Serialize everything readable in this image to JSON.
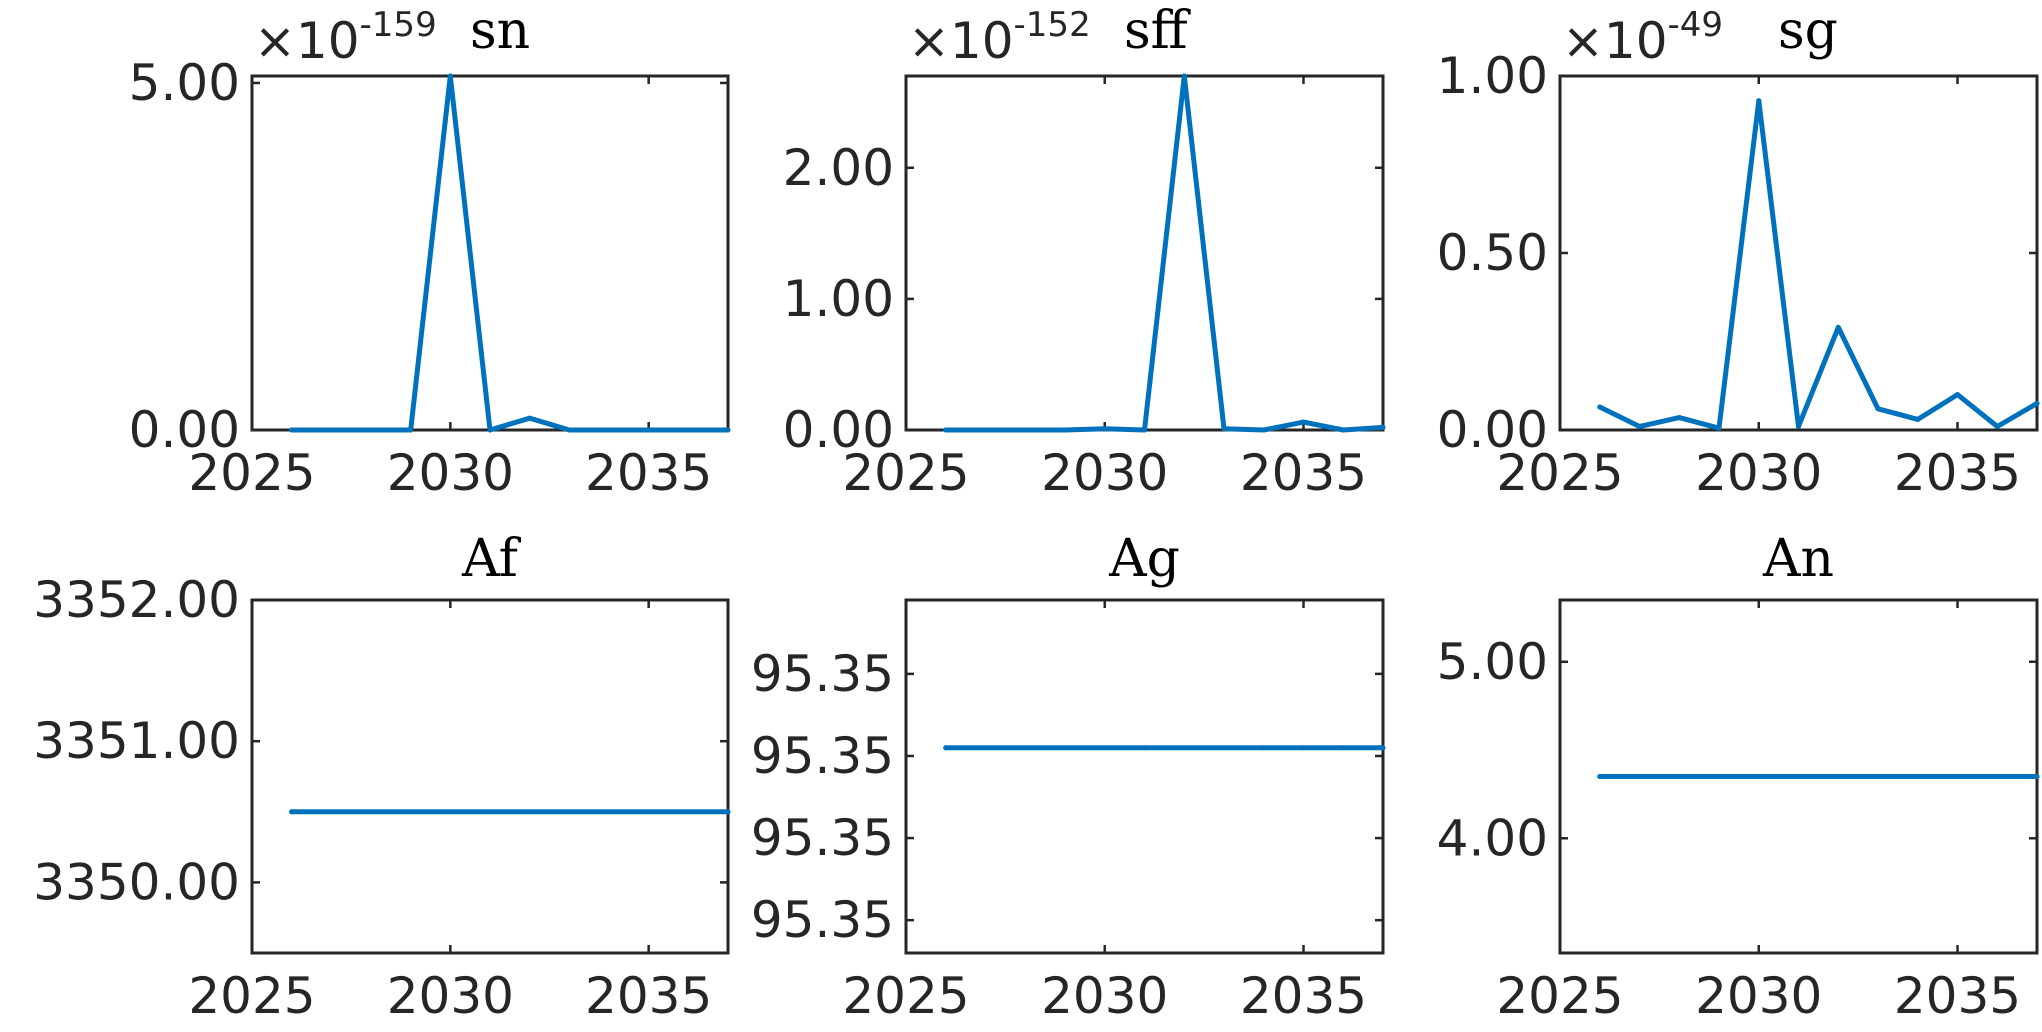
{
  "colors": {
    "series": "#0072BD",
    "axis": "#262626",
    "background": "#ffffff"
  },
  "chart_data": [
    {
      "type": "line",
      "title": "sn",
      "exponent": "-159",
      "exponent_prefix": "×10",
      "x": [
        2026,
        2027,
        2028,
        2029,
        2030,
        2031,
        2032,
        2033,
        2034,
        2035,
        2036,
        2037
      ],
      "series": [
        {
          "values": [
            0,
            0,
            0,
            0,
            5.1,
            0,
            0.17,
            0,
            0,
            0,
            0,
            0
          ]
        }
      ],
      "xlim": [
        2025,
        2037
      ],
      "ylim": [
        0,
        5.1
      ],
      "xticks": [
        2025,
        2030,
        2035
      ],
      "xtick_labels": [
        "2025",
        "2030",
        "2035"
      ],
      "yticks": [
        0,
        5
      ],
      "ytick_labels": [
        "0.00",
        "5.00"
      ]
    },
    {
      "type": "line",
      "title": "sff",
      "exponent": "-152",
      "exponent_prefix": "×10",
      "x": [
        2026,
        2027,
        2028,
        2029,
        2030,
        2031,
        2032,
        2033,
        2034,
        2035,
        2036,
        2037
      ],
      "series": [
        {
          "values": [
            0,
            0,
            0,
            0,
            0.01,
            0,
            2.7,
            0.01,
            0,
            0.06,
            0,
            0.02
          ]
        }
      ],
      "xlim": [
        2025,
        2037
      ],
      "ylim": [
        0,
        2.7
      ],
      "xticks": [
        2025,
        2030,
        2035
      ],
      "xtick_labels": [
        "2025",
        "2030",
        "2035"
      ],
      "yticks": [
        0,
        1,
        2
      ],
      "ytick_labels": [
        "0.00",
        "1.00",
        "2.00"
      ]
    },
    {
      "type": "line",
      "title": "sg",
      "exponent": "-49",
      "exponent_prefix": "×10",
      "x": [
        2026,
        2027,
        2028,
        2029,
        2030,
        2031,
        2032,
        2033,
        2034,
        2035,
        2036,
        2037
      ],
      "series": [
        {
          "values": [
            0.065,
            0.01,
            0.035,
            0.005,
            0.93,
            0.01,
            0.29,
            0.06,
            0.03,
            0.1,
            0.01,
            0.075
          ]
        }
      ],
      "xlim": [
        2025,
        2037
      ],
      "ylim": [
        0,
        1
      ],
      "xticks": [
        2025,
        2030,
        2035
      ],
      "xtick_labels": [
        "2025",
        "2030",
        "2035"
      ],
      "yticks": [
        0,
        0.5,
        1
      ],
      "ytick_labels": [
        "0.00",
        "0.50",
        "1.00"
      ]
    },
    {
      "type": "line",
      "title": "Af",
      "x": [
        2026,
        2037
      ],
      "series": [
        {
          "values": [
            3350.5,
            3350.5
          ]
        }
      ],
      "xlim": [
        2025,
        2037
      ],
      "ylim": [
        3349.5,
        3352
      ],
      "xticks": [
        2025,
        2030,
        2035
      ],
      "xtick_labels": [
        "2025",
        "2030",
        "2035"
      ],
      "yticks": [
        3350,
        3351,
        3352
      ],
      "ytick_labels": [
        "3350.00",
        "3351.00",
        "3352.00"
      ]
    },
    {
      "type": "line",
      "title": "Ag",
      "x": [
        2026,
        2031,
        2034,
        2035,
        2036,
        2037
      ],
      "series": [
        {
          "values": [
            95.3481,
            95.3481,
            95.3481,
            95.3481,
            95.3481,
            95.3481
          ]
        }
      ],
      "xlim": [
        2025,
        2037
      ],
      "ylim": [
        95.3456,
        95.3499
      ],
      "yticks": [
        95.346,
        95.347,
        95.348,
        95.349
      ],
      "ytick_labels": [
        "95.35",
        "95.35",
        "95.35",
        "95.35"
      ],
      "xticks": [
        2025,
        2030,
        2035
      ],
      "xtick_labels": [
        "2025",
        "2030",
        "2035"
      ]
    },
    {
      "type": "line",
      "title": "An",
      "x": [
        2026,
        2037
      ],
      "series": [
        {
          "values": [
            4.35,
            4.35
          ]
        }
      ],
      "xlim": [
        2025,
        2037
      ],
      "ylim": [
        3.35,
        5.35
      ],
      "xticks": [
        2025,
        2030,
        2035
      ],
      "xtick_labels": [
        "2025",
        "2030",
        "2035"
      ],
      "yticks": [
        4,
        5
      ],
      "ytick_labels": [
        "4.00",
        "5.00"
      ]
    }
  ]
}
